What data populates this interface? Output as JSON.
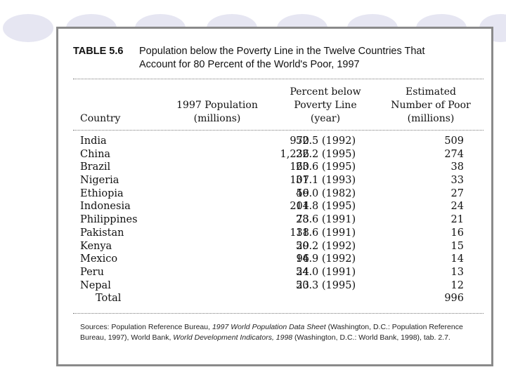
{
  "table": {
    "number": "TABLE 5.6",
    "title_line1": "Population below the Poverty Line in the Twelve Countries That",
    "title_line2": "Account for 80 Percent of the World's Poor, 1997"
  },
  "headers": {
    "country": "Country",
    "pop_line1": "1997 Population",
    "pop_line2": "(millions)",
    "pct_line1": "Percent below",
    "pct_line2": "Poverty Line",
    "pct_line3": "(year)",
    "poor_line1": "Estimated",
    "poor_line2": "Number of Poor",
    "poor_line3": "(millions)"
  },
  "rows": [
    {
      "country": "India",
      "population": "970",
      "percent": "52.5 (1992)",
      "poor": "509"
    },
    {
      "country": "China",
      "population": "1,236",
      "percent": "22.2 (1995)",
      "poor": "274"
    },
    {
      "country": "Brazil",
      "population": "160",
      "percent": "23.6 (1995)",
      "poor": "38"
    },
    {
      "country": "Nigeria",
      "population": "107",
      "percent": "31.1 (1993)",
      "poor": "33"
    },
    {
      "country": "Ethiopia",
      "population": "59",
      "percent": "46.0 (1982)",
      "poor": "27"
    },
    {
      "country": "Indonesia",
      "population": "204",
      "percent": "11.8 (1995)",
      "poor": "24"
    },
    {
      "country": "Philippines",
      "population": "73",
      "percent": "28.6 (1991)",
      "poor": "21"
    },
    {
      "country": "Pakistan",
      "population": "138",
      "percent": "11.6 (1991)",
      "poor": "16"
    },
    {
      "country": "Kenya",
      "population": "29",
      "percent": "50.2 (1992)",
      "poor": "15"
    },
    {
      "country": "Mexico",
      "population": "96",
      "percent": "14.9 (1992)",
      "poor": "14"
    },
    {
      "country": "Peru",
      "population": "24",
      "percent": "54.0 (1991)",
      "poor": "13"
    },
    {
      "country": "Nepal",
      "population": "23",
      "percent": "50.3 (1995)",
      "poor": "12"
    }
  ],
  "total": {
    "label": "Total",
    "poor": "996"
  },
  "sources": {
    "prefix": "Sources: Population Reference Bureau, ",
    "title1": "1997 World Population Data Sheet",
    "mid1": " (Washington, D.C.: Population Reference Bureau, 1997), World Bank, ",
    "title2": "World Development Indicators, 1998",
    "suffix": " (Washington, D.C.: World Bank, 1998), tab. 2.7."
  },
  "colors": {
    "oval": "#e6e6f2",
    "frame": "#8a8a8a"
  }
}
